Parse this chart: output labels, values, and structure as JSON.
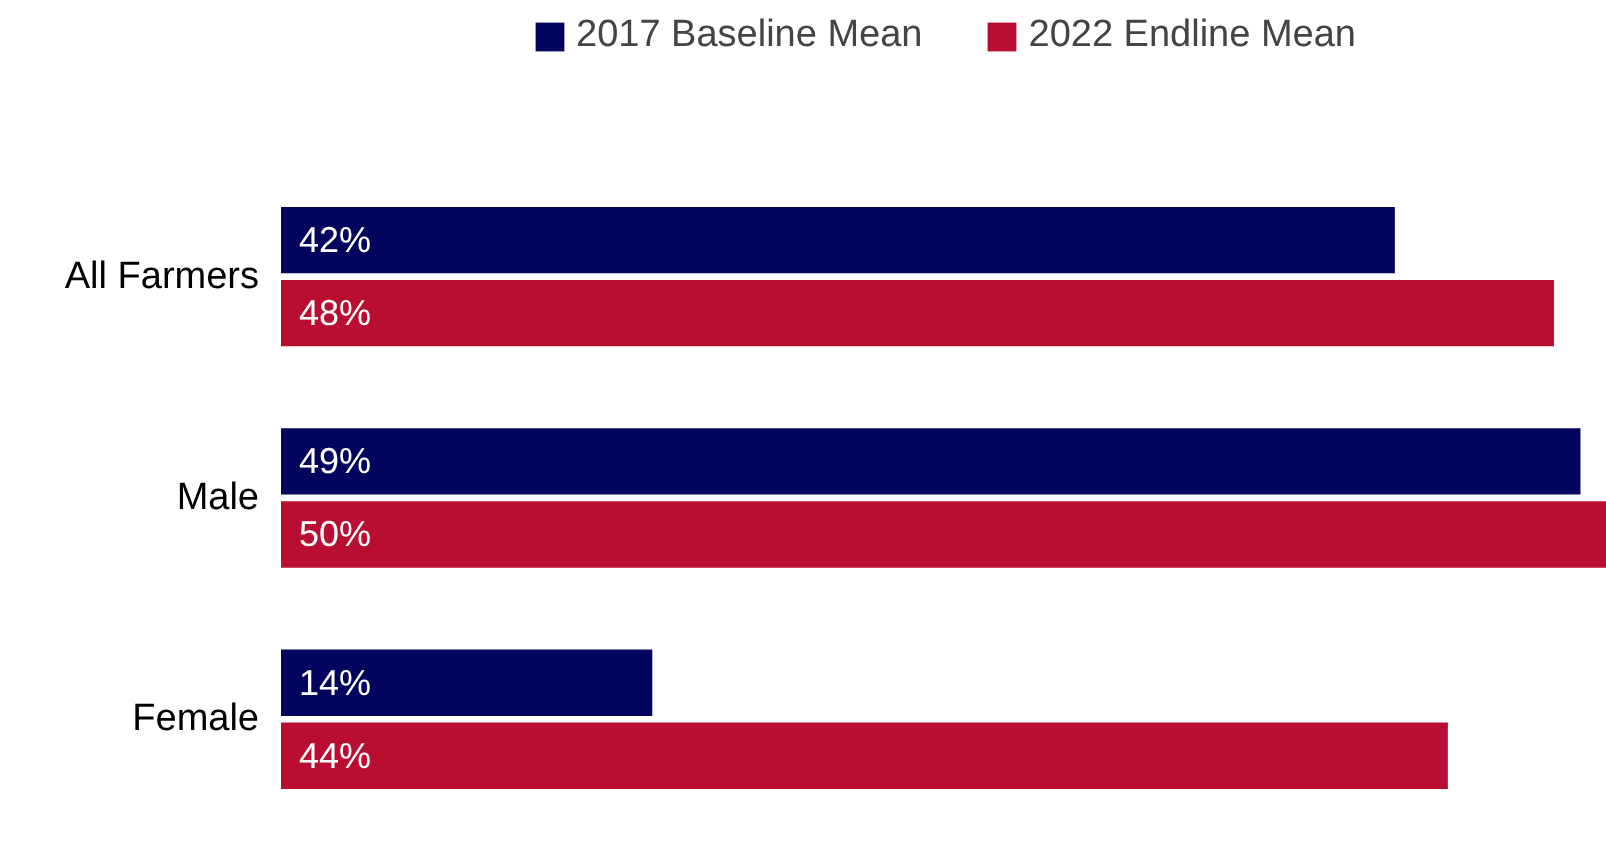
{
  "chart_data": {
    "type": "bar",
    "orientation": "horizontal",
    "categories": [
      "All Farmers",
      "Male",
      "Female"
    ],
    "series": [
      {
        "name": "2017 Baseline Mean",
        "color": "#03045e",
        "values": [
          42,
          49,
          14
        ],
        "value_labels": [
          "42%",
          "49%",
          "14%"
        ]
      },
      {
        "name": "2022 Endline Mean",
        "color": "#b90e31",
        "values": [
          48,
          50,
          44
        ],
        "value_labels": [
          "48%",
          "50%",
          "44%"
        ]
      }
    ],
    "xlim": [
      0,
      50
    ],
    "legend": "top",
    "grid": false
  }
}
